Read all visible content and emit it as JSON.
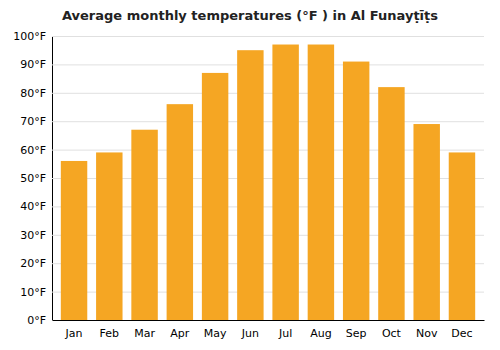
{
  "chart_data": {
    "type": "bar",
    "title": "Average monthly temperatures (°F ) in Al Funayṭīṭs",
    "categories": [
      "Jan",
      "Feb",
      "Mar",
      "Apr",
      "May",
      "Jun",
      "Jul",
      "Aug",
      "Sep",
      "Oct",
      "Nov",
      "Dec"
    ],
    "values": [
      56,
      59,
      67,
      76,
      87,
      95,
      97,
      97,
      91,
      82,
      69,
      59
    ],
    "color": "#F5A623",
    "ylim": [
      0,
      100
    ],
    "yticks": [
      {
        "value": 0,
        "label": "0°F"
      },
      {
        "value": 10,
        "label": "10°F"
      },
      {
        "value": 20,
        "label": "20°F"
      },
      {
        "value": 30,
        "label": "30°F"
      },
      {
        "value": 40,
        "label": "40°F"
      },
      {
        "value": 50,
        "label": "50°F"
      },
      {
        "value": 60,
        "label": "60°F"
      },
      {
        "value": 70,
        "label": "70°F"
      },
      {
        "value": 80,
        "label": "80°F"
      },
      {
        "value": 90,
        "label": "90°F"
      },
      {
        "value": 100,
        "label": "100°F"
      }
    ],
    "grid": true
  }
}
